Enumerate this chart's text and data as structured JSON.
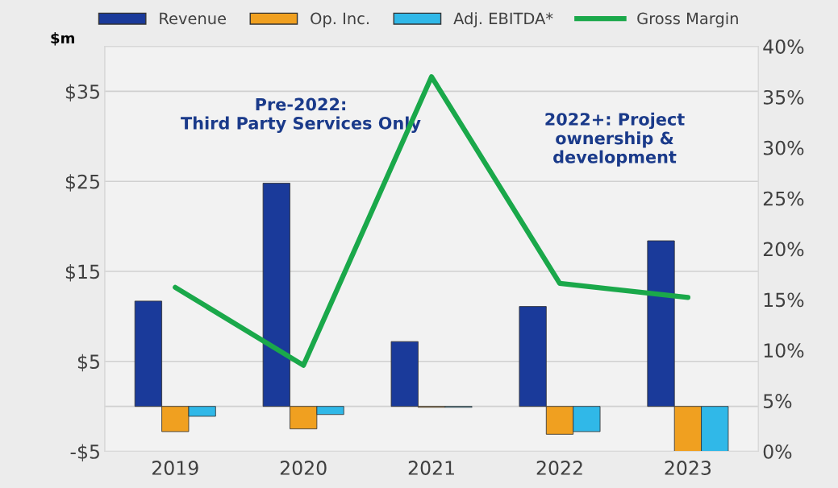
{
  "chart_data": {
    "type": "bar",
    "categories": [
      "2019",
      "2020",
      "2021",
      "2022",
      "2023"
    ],
    "ylabel": "$m",
    "ylim": [
      -5,
      40
    ],
    "yticks": [
      {
        "value": -5,
        "label": "-$5"
      },
      {
        "value": 5,
        "label": "$5"
      },
      {
        "value": 15,
        "label": "$15"
      },
      {
        "value": 25,
        "label": "$25"
      },
      {
        "value": 35,
        "label": "$35"
      }
    ],
    "y2lim": [
      0,
      40
    ],
    "y2ticks": [
      {
        "value": 0,
        "label": "0%"
      },
      {
        "value": 5,
        "label": "5%"
      },
      {
        "value": 10,
        "label": "10%"
      },
      {
        "value": 15,
        "label": "15%"
      },
      {
        "value": 20,
        "label": "20%"
      },
      {
        "value": 25,
        "label": "25%"
      },
      {
        "value": 30,
        "label": "30%"
      },
      {
        "value": 35,
        "label": "35%"
      },
      {
        "value": 40,
        "label": "40%"
      }
    ],
    "series": [
      {
        "name": "Revenue",
        "color": "#1a3a9a",
        "values": [
          11.7,
          24.8,
          7.2,
          11.1,
          18.4
        ]
      },
      {
        "name": "Op. Inc.",
        "color": "#f0a020",
        "values": [
          -2.8,
          -2.5,
          -0.1,
          -3.1,
          -5
        ]
      },
      {
        "name": "Adj. EBITDA*",
        "color": "#30b8e8",
        "values": [
          -1.1,
          -0.9,
          -0.1,
          -2.8,
          -5
        ]
      },
      {
        "name": "Gross Margin",
        "type": "line",
        "axis": "y2",
        "color": "#1aa84a",
        "values": [
          16.2,
          8.5,
          37,
          16.6,
          15.2
        ]
      }
    ],
    "annotations": [
      "Pre-2022:\nThird Party Services Only",
      "2022+: Project\nownership &\ndevelopment"
    ],
    "grid": "y",
    "legend": "top"
  }
}
